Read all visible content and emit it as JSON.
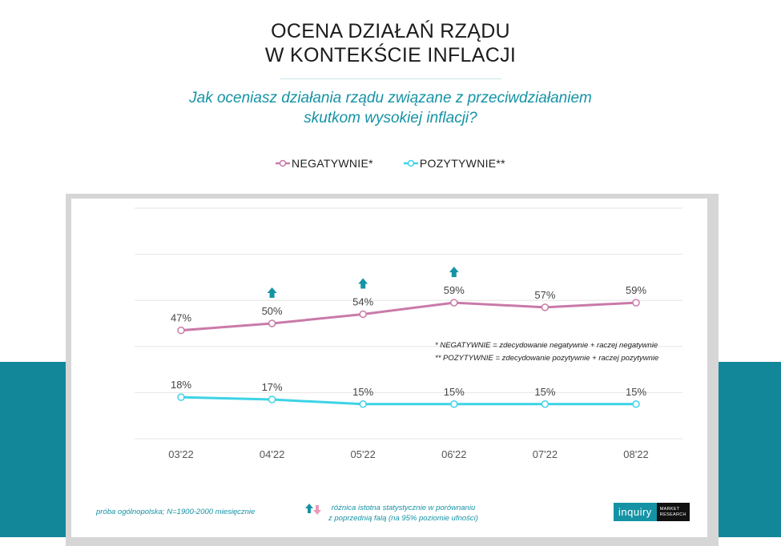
{
  "header": {
    "title_line1": "OCENA DZIAŁAŃ RZĄDU",
    "title_line2": "W KONTEKŚCIE INFLACJI",
    "subtitle_line1": "Jak oceniasz działania rządu związane z przeciwdziałaniem",
    "subtitle_line2": "skutkom wysokiej inflacji?"
  },
  "colors": {
    "negative": "#c97aa9",
    "positive": "#3dd3e6",
    "arrow_up": "#1593a5",
    "arrow_down": "#e99ab8",
    "teal_band": "#12879a"
  },
  "chart_data": {
    "type": "line",
    "categories": [
      "03'22",
      "04'22",
      "05'22",
      "06'22",
      "07'22",
      "08'22"
    ],
    "series": [
      {
        "name": "NEGATYWNIE*",
        "values": [
          47,
          50,
          54,
          59,
          57,
          59
        ],
        "labels": [
          "47%",
          "50%",
          "54%",
          "59%",
          "57%",
          "59%"
        ]
      },
      {
        "name": "POZYTYWNIE**",
        "values": [
          18,
          17,
          15,
          15,
          15,
          15
        ],
        "labels": [
          "18%",
          "17%",
          "15%",
          "15%",
          "15%",
          "15%"
        ]
      }
    ],
    "significant_increase_negative": [
      false,
      true,
      true,
      true,
      false,
      false
    ],
    "ylim": [
      0,
      100
    ],
    "grid": true,
    "legend": "top-center"
  },
  "notes": {
    "line1": "* NEGATYWNIE = zdecydowanie negatywnie + raczej negatywnie",
    "line2": "** POZYTYWNIE = zdecydowanie pozytywnie + raczej pozytywnie"
  },
  "footer": {
    "sample": "próba ogólnopolska; N=1900-2000 miesięcznie",
    "significance_line1": "różnica istotna statystycznie w porównaniu",
    "significance_line2": "z poprzednią falą (na 95% poziomie ufności)",
    "logo_main": "inquiry",
    "logo_sub1": "MARKET",
    "logo_sub2": "RESEARCH"
  }
}
